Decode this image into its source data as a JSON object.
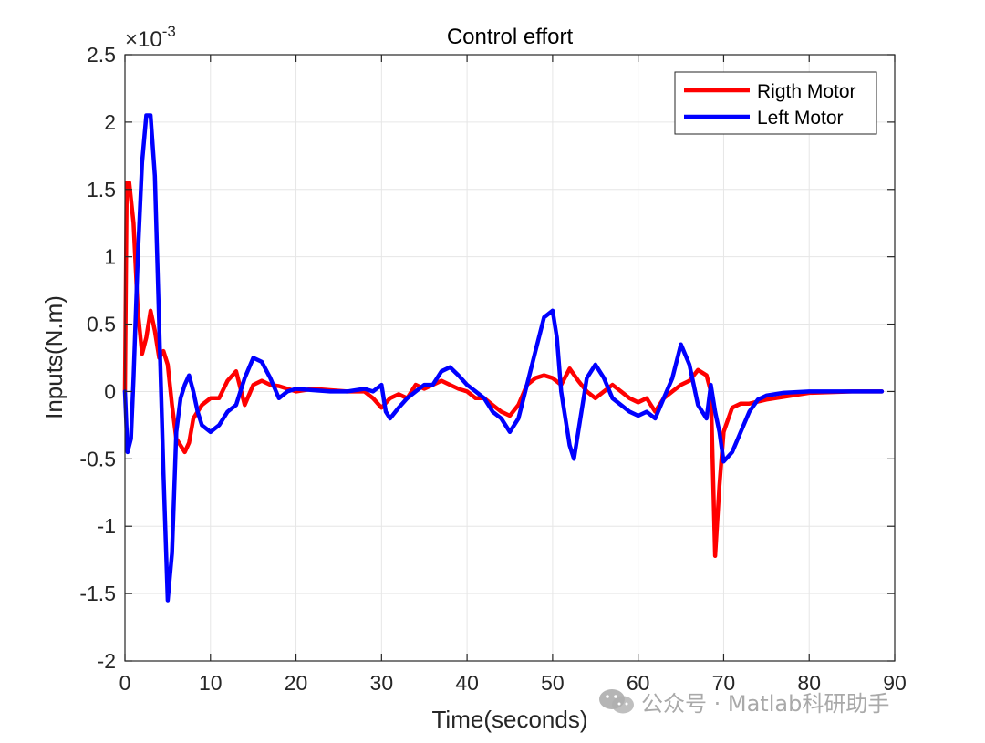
{
  "colors": {
    "right_motor": "#ff0000",
    "left_motor": "#0000ff",
    "grid": "#e6e6e6",
    "axes": "#262626"
  },
  "watermark": {
    "text": "公众号 · Matlab科研助手",
    "icon": "wechat-icon"
  },
  "chart_data": {
    "type": "line",
    "title": "Control effort",
    "xlabel": "Time(seconds)",
    "ylabel": "Inputs(N.m)",
    "xlim": [
      0,
      90
    ],
    "ylim": [
      -2,
      2.5
    ],
    "y_exponent_label": "×10",
    "y_exponent_power": "-3",
    "xticks": [
      0,
      10,
      20,
      30,
      40,
      50,
      60,
      70,
      80,
      90
    ],
    "xtick_labels": [
      "0",
      "10",
      "20",
      "30",
      "40",
      "50",
      "60",
      "70",
      "80",
      "90"
    ],
    "yticks": [
      -2,
      -1.5,
      -1,
      -0.5,
      0,
      0.5,
      1,
      1.5,
      2,
      2.5
    ],
    "ytick_labels": [
      "-2",
      "-1.5",
      "-1",
      "-0.5",
      "0",
      "0.5",
      "1",
      "1.5",
      "2",
      "2.5"
    ],
    "grid": true,
    "legend_position": "top-right",
    "series": [
      {
        "name": "Rigth Motor",
        "color": "#ff0000",
        "x": [
          0,
          0.2,
          0.5,
          1,
          1.5,
          2,
          2.5,
          3,
          3.5,
          4,
          4.5,
          5,
          5.5,
          6,
          6.5,
          7,
          7.5,
          8,
          9,
          10,
          11,
          12,
          13,
          14,
          15,
          16,
          17,
          18,
          20,
          22,
          24,
          26,
          28,
          29,
          30,
          31,
          32,
          33,
          34,
          35,
          36,
          37,
          38,
          39,
          40,
          41,
          42,
          43,
          44,
          45,
          46,
          47,
          48,
          49,
          50,
          51,
          52,
          53,
          54,
          55,
          56,
          57,
          58,
          59,
          60,
          61,
          62,
          63,
          64,
          65,
          66,
          67,
          68,
          68.5,
          69,
          69.5,
          70,
          71,
          72,
          73,
          75,
          80,
          85,
          88.5
        ],
        "y": [
          0,
          1.55,
          1.55,
          1.25,
          0.6,
          0.28,
          0.4,
          0.6,
          0.45,
          0.25,
          0.3,
          0.2,
          -0.1,
          -0.35,
          -0.4,
          -0.45,
          -0.38,
          -0.2,
          -0.1,
          -0.05,
          -0.05,
          0.08,
          0.15,
          -0.1,
          0.05,
          0.08,
          0.05,
          0.04,
          0.0,
          0.02,
          0.01,
          0.0,
          0.0,
          -0.05,
          -0.12,
          -0.05,
          -0.02,
          -0.05,
          0.05,
          0.02,
          0.05,
          0.08,
          0.05,
          0.02,
          0.0,
          -0.05,
          -0.05,
          -0.1,
          -0.15,
          -0.18,
          -0.1,
          0.05,
          0.1,
          0.12,
          0.1,
          0.05,
          0.17,
          0.08,
          0.0,
          -0.05,
          0.0,
          0.05,
          0.0,
          -0.05,
          -0.08,
          -0.05,
          -0.15,
          -0.05,
          0.0,
          0.05,
          0.08,
          0.16,
          0.12,
          0.0,
          -1.22,
          -0.7,
          -0.3,
          -0.12,
          -0.09,
          -0.09,
          -0.06,
          -0.01,
          0.0,
          0.0
        ]
      },
      {
        "name": "Left Motor",
        "color": "#0000ff",
        "x": [
          0,
          0.3,
          0.7,
          1,
          1.5,
          2,
          2.5,
          3,
          3.5,
          4,
          4.5,
          5,
          5.5,
          6,
          6.5,
          7,
          7.5,
          8,
          8.5,
          9,
          10,
          11,
          12,
          13,
          14,
          15,
          16,
          17,
          18,
          19,
          20,
          22,
          24,
          26,
          28,
          29,
          30,
          30.5,
          31,
          32,
          33,
          34,
          35,
          36,
          37,
          38,
          39,
          40,
          41,
          42,
          43,
          44,
          45,
          46,
          47,
          48,
          49,
          50,
          50.5,
          51,
          52,
          52.5,
          53,
          54,
          55,
          56,
          57,
          58,
          59,
          60,
          61,
          62,
          63,
          64,
          65,
          66,
          67,
          68,
          68.5,
          69,
          69.5,
          70,
          71,
          72,
          73,
          74,
          75,
          77,
          80,
          85,
          88.5
        ],
        "y": [
          0,
          -0.45,
          -0.35,
          0.1,
          1.0,
          1.7,
          2.05,
          2.05,
          1.6,
          0.5,
          -0.6,
          -1.55,
          -1.2,
          -0.3,
          -0.05,
          0.05,
          0.12,
          0.0,
          -0.15,
          -0.25,
          -0.3,
          -0.25,
          -0.15,
          -0.1,
          0.1,
          0.25,
          0.22,
          0.1,
          -0.05,
          0.0,
          0.02,
          0.01,
          0.0,
          0.0,
          0.02,
          0.0,
          0.05,
          -0.15,
          -0.2,
          -0.12,
          -0.05,
          0.0,
          0.05,
          0.05,
          0.15,
          0.18,
          0.12,
          0.05,
          0.0,
          -0.05,
          -0.15,
          -0.2,
          -0.3,
          -0.2,
          0.05,
          0.3,
          0.55,
          0.6,
          0.4,
          0.0,
          -0.4,
          -0.5,
          -0.3,
          0.1,
          0.2,
          0.1,
          -0.05,
          -0.1,
          -0.15,
          -0.18,
          -0.15,
          -0.2,
          -0.05,
          0.1,
          0.35,
          0.2,
          -0.1,
          -0.2,
          0.05,
          -0.15,
          -0.3,
          -0.52,
          -0.45,
          -0.3,
          -0.15,
          -0.06,
          -0.03,
          -0.01,
          0.0,
          0.0,
          0.0
        ]
      }
    ]
  }
}
